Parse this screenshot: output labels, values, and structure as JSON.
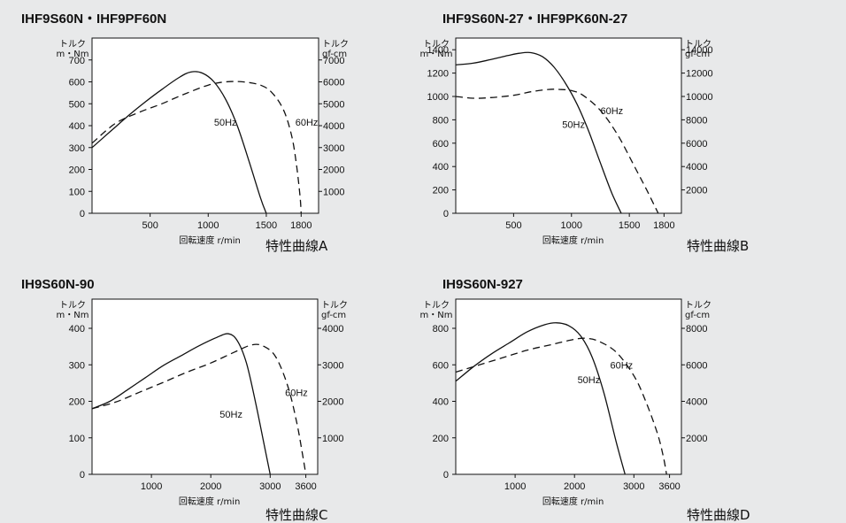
{
  "chart_data": [
    {
      "type": "line",
      "title": "IHF9S60N・IHF9PF60N",
      "caption": "特性曲線A",
      "xlabel": "回転速度 r/min",
      "ylabel_left_1": "トルク",
      "ylabel_left_2": "m・Nm",
      "ylabel_right_1": "トルク",
      "ylabel_right_2": "gf-cm",
      "xlim": [
        0,
        1950
      ],
      "ylim": [
        0,
        800
      ],
      "x_ticks": [
        500,
        1000,
        1500,
        1800
      ],
      "y_ticks": [
        0,
        100,
        200,
        300,
        400,
        500,
        600,
        700
      ],
      "y_ticks_right": [
        1000,
        2000,
        3000,
        4000,
        5000,
        6000,
        7000
      ],
      "series": [
        {
          "name": "50Hz",
          "style": "solid",
          "x": [
            0,
            150,
            300,
            450,
            600,
            750,
            850,
            950,
            1050,
            1150,
            1250,
            1350,
            1450,
            1500
          ],
          "y": [
            300,
            370,
            440,
            505,
            565,
            620,
            645,
            640,
            600,
            520,
            400,
            240,
            70,
            0
          ]
        },
        {
          "name": "60Hz",
          "style": "dashed",
          "x": [
            0,
            200,
            400,
            600,
            800,
            1000,
            1150,
            1300,
            1450,
            1550,
            1650,
            1720,
            1760,
            1790,
            1800
          ],
          "y": [
            320,
            410,
            460,
            500,
            545,
            585,
            600,
            600,
            585,
            550,
            470,
            350,
            220,
            80,
            0
          ]
        }
      ],
      "series_labels": [
        {
          "text": "50Hz",
          "x": 1050,
          "y": 400
        },
        {
          "text": "60Hz",
          "x": 1750,
          "y": 400
        }
      ]
    },
    {
      "type": "line",
      "title": "IHF9S60N-27・IHF9PK60N-27",
      "caption": "特性曲線B",
      "xlabel": "回転速度 r/min",
      "ylabel_left_1": "トルク",
      "ylabel_left_2": "m・Nm",
      "ylabel_right_1": "トルク",
      "ylabel_right_2": "gf-cm",
      "xlim": [
        0,
        1950
      ],
      "ylim": [
        0,
        1500
      ],
      "x_ticks": [
        500,
        1000,
        1500,
        1800
      ],
      "y_ticks": [
        0,
        200,
        400,
        600,
        800,
        1000,
        1200,
        1400
      ],
      "y_ticks_right": [
        2000,
        4000,
        6000,
        8000,
        10000,
        12000,
        14000
      ],
      "series": [
        {
          "name": "50Hz",
          "style": "solid",
          "x": [
            0,
            150,
            300,
            450,
            550,
            650,
            750,
            850,
            950,
            1050,
            1150,
            1250,
            1350,
            1430
          ],
          "y": [
            1270,
            1285,
            1315,
            1350,
            1370,
            1375,
            1340,
            1250,
            1110,
            930,
            700,
            430,
            170,
            0
          ]
        },
        {
          "name": "60Hz",
          "style": "dashed",
          "x": [
            0,
            150,
            300,
            500,
            650,
            800,
            900,
            1000,
            1100,
            1250,
            1400,
            1550,
            1650,
            1720,
            1750
          ],
          "y": [
            1000,
            985,
            990,
            1010,
            1040,
            1060,
            1060,
            1050,
            1010,
            880,
            670,
            390,
            200,
            60,
            0
          ]
        }
      ],
      "series_labels": [
        {
          "text": "50Hz",
          "x": 920,
          "y": 730
        },
        {
          "text": "60Hz",
          "x": 1250,
          "y": 850
        }
      ]
    },
    {
      "type": "line",
      "title": "IH9S60N-90",
      "caption": "特性曲線C",
      "xlabel": "回転速度 r/min",
      "ylabel_left_1": "トルク",
      "ylabel_left_2": "m・Nm",
      "ylabel_right_1": "トルク",
      "ylabel_right_2": "gf-cm",
      "xlim": [
        0,
        3800
      ],
      "ylim": [
        0,
        480
      ],
      "x_ticks": [
        1000,
        2000,
        3000,
        3600
      ],
      "y_ticks": [
        0,
        100,
        200,
        300,
        400
      ],
      "y_ticks_right": [
        1000,
        2000,
        3000,
        4000
      ],
      "series": [
        {
          "name": "50Hz",
          "style": "solid",
          "x": [
            0,
            300,
            600,
            900,
            1200,
            1500,
            1800,
            2100,
            2300,
            2450,
            2600,
            2750,
            2900,
            3000
          ],
          "y": [
            180,
            200,
            232,
            265,
            298,
            325,
            352,
            375,
            385,
            365,
            305,
            200,
            80,
            0
          ]
        },
        {
          "name": "60Hz",
          "style": "dashed",
          "x": [
            0,
            400,
            800,
            1200,
            1600,
            2000,
            2400,
            2700,
            2900,
            3100,
            3300,
            3450,
            3550,
            3600
          ],
          "y": [
            180,
            198,
            225,
            252,
            280,
            305,
            335,
            355,
            350,
            320,
            240,
            140,
            50,
            0
          ]
        }
      ],
      "series_labels": [
        {
          "text": "50Hz",
          "x": 2150,
          "y": 155
        },
        {
          "text": "60Hz",
          "x": 3250,
          "y": 215
        }
      ]
    },
    {
      "type": "line",
      "title": "IH9S60N-927",
      "caption": "特性曲線D",
      "xlabel": "回転速度 r/min",
      "ylabel_left_1": "トルク",
      "ylabel_left_2": "m・Nm",
      "ylabel_right_1": "トルク",
      "ylabel_right_2": "gf-cm",
      "xlim": [
        0,
        3800
      ],
      "ylim": [
        0,
        960
      ],
      "x_ticks": [
        1000,
        2000,
        3000,
        3600
      ],
      "y_ticks": [
        0,
        200,
        400,
        600,
        800
      ],
      "y_ticks_right": [
        2000,
        4000,
        6000,
        8000
      ],
      "series": [
        {
          "name": "50Hz",
          "style": "solid",
          "x": [
            0,
            300,
            600,
            900,
            1200,
            1500,
            1700,
            1900,
            2100,
            2300,
            2500,
            2700,
            2850
          ],
          "y": [
            510,
            590,
            660,
            720,
            780,
            820,
            830,
            815,
            760,
            640,
            440,
            180,
            0
          ]
        },
        {
          "name": "60Hz",
          "style": "dashed",
          "x": [
            0,
            400,
            800,
            1200,
            1600,
            2000,
            2200,
            2400,
            2700,
            3000,
            3200,
            3400,
            3500,
            3550
          ],
          "y": [
            560,
            600,
            640,
            680,
            710,
            740,
            745,
            730,
            670,
            540,
            400,
            220,
            90,
            0
          ]
        }
      ],
      "series_labels": [
        {
          "text": "50Hz",
          "x": 2050,
          "y": 500
        },
        {
          "text": "60Hz",
          "x": 2600,
          "y": 580
        }
      ]
    }
  ]
}
